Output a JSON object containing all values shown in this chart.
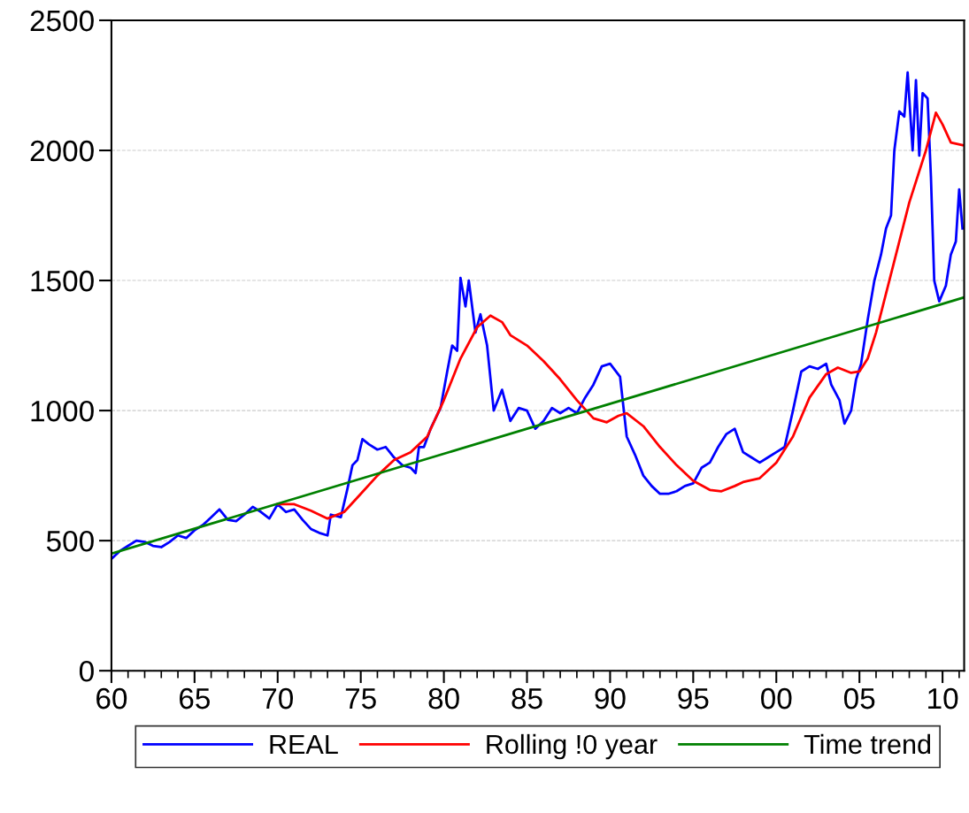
{
  "chart_data": {
    "type": "line",
    "xlim": [
      1960,
      2011.3
    ],
    "ylim": [
      0,
      2500
    ],
    "xticks": [
      {
        "value": 1960,
        "label": "60"
      },
      {
        "value": 1965,
        "label": "65"
      },
      {
        "value": 1970,
        "label": "70"
      },
      {
        "value": 1975,
        "label": "75"
      },
      {
        "value": 1980,
        "label": "80"
      },
      {
        "value": 1985,
        "label": "85"
      },
      {
        "value": 1990,
        "label": "90"
      },
      {
        "value": 1995,
        "label": "95"
      },
      {
        "value": 2000,
        "label": "00"
      },
      {
        "value": 2005,
        "label": "05"
      },
      {
        "value": 2010,
        "label": "10"
      }
    ],
    "yticks": [
      0,
      500,
      1000,
      1500,
      2000,
      2500
    ],
    "grid": "y",
    "legend": "bottom",
    "line_style": "solid",
    "marker": "none",
    "series": [
      {
        "name": "REAL",
        "color": "#0000ff",
        "x": [
          1960,
          1960.5,
          1961,
          1961.5,
          1962,
          1962.5,
          1963,
          1963.5,
          1964,
          1964.5,
          1965,
          1965.5,
          1966,
          1966.5,
          1967,
          1967.5,
          1968,
          1968.5,
          1969,
          1969.5,
          1970,
          1970.5,
          1971,
          1971.5,
          1972,
          1972.5,
          1973,
          1973.2,
          1973.8,
          1974.2,
          1974.5,
          1974.8,
          1975.1,
          1975.5,
          1976,
          1976.5,
          1977,
          1977.5,
          1978,
          1978.3,
          1978.5,
          1978.8,
          1979.2,
          1979.8,
          1980.2,
          1980.5,
          1980.8,
          1981,
          1981.3,
          1981.5,
          1981.9,
          1982.2,
          1982.6,
          1983,
          1983.5,
          1984,
          1984.5,
          1985,
          1985.5,
          1986,
          1986.5,
          1987,
          1987.5,
          1988,
          1988.5,
          1989,
          1989.5,
          1990,
          1990.6,
          1991,
          1991.5,
          1992,
          1992.5,
          1993,
          1993.5,
          1994,
          1994.5,
          1995,
          1995.5,
          1996,
          1996.5,
          1997,
          1997.5,
          1998,
          1998.5,
          1999,
          1999.5,
          2000,
          2000.5,
          2001,
          2001.5,
          2002,
          2002.5,
          2003,
          2003.3,
          2003.8,
          2004.1,
          2004.5,
          2004.8,
          2005.1,
          2005.5,
          2005.9,
          2006.3,
          2006.6,
          2006.9,
          2007.1,
          2007.4,
          2007.7,
          2007.9,
          2008.2,
          2008.4,
          2008.6,
          2008.8,
          2009.1,
          2009.3,
          2009.5,
          2009.8,
          2010.2,
          2010.5,
          2010.8,
          2011,
          2011.2
        ],
        "values": [
          430,
          460,
          480,
          500,
          495,
          480,
          475,
          495,
          520,
          510,
          540,
          560,
          590,
          620,
          580,
          575,
          600,
          630,
          610,
          585,
          640,
          610,
          620,
          580,
          545,
          530,
          520,
          600,
          590,
          700,
          790,
          810,
          890,
          870,
          850,
          860,
          820,
          790,
          780,
          760,
          860,
          860,
          930,
          1010,
          1150,
          1250,
          1230,
          1510,
          1400,
          1500,
          1300,
          1370,
          1250,
          1000,
          1080,
          960,
          1010,
          1000,
          930,
          960,
          1010,
          990,
          1010,
          990,
          1050,
          1100,
          1170,
          1180,
          1130,
          900,
          830,
          750,
          710,
          680,
          680,
          690,
          710,
          720,
          780,
          800,
          860,
          910,
          930,
          840,
          820,
          800,
          820,
          840,
          860,
          1000,
          1150,
          1170,
          1160,
          1180,
          1100,
          1040,
          950,
          1000,
          1120,
          1180,
          1350,
          1500,
          1600,
          1700,
          1750,
          2000,
          2150,
          2130,
          2300,
          2000,
          2270,
          1980,
          2220,
          2200,
          1900,
          1500,
          1420,
          1480,
          1600,
          1650,
          1850,
          1700
        ]
      },
      {
        "name": "Rolling !0 year",
        "color": "#ff0000",
        "x": [
          1970,
          1971,
          1972,
          1973,
          1974,
          1975,
          1976,
          1977,
          1978,
          1979,
          1980,
          1981,
          1982,
          1982.8,
          1983.5,
          1984,
          1985,
          1986,
          1987,
          1988,
          1989,
          1989.8,
          1990.5,
          1991,
          1992,
          1993,
          1994,
          1995,
          1996,
          1996.7,
          1997.5,
          1998,
          1999,
          2000,
          2001,
          2002,
          2003,
          2003.7,
          2004.5,
          2005,
          2005.5,
          2006,
          2007,
          2008,
          2009,
          2009.6,
          2010,
          2010.5,
          2011.2
        ],
        "values": [
          640,
          640,
          615,
          585,
          610,
          680,
          750,
          810,
          840,
          900,
          1040,
          1200,
          1320,
          1365,
          1340,
          1290,
          1250,
          1190,
          1120,
          1040,
          970,
          955,
          980,
          990,
          940,
          860,
          790,
          730,
          695,
          690,
          710,
          725,
          740,
          800,
          900,
          1050,
          1140,
          1165,
          1145,
          1150,
          1200,
          1300,
          1550,
          1800,
          2000,
          2145,
          2100,
          2030,
          2020
        ]
      },
      {
        "name": "Time trend",
        "color": "#008000",
        "x": [
          1960,
          2011.3
        ],
        "values": [
          450,
          1435
        ]
      }
    ]
  }
}
